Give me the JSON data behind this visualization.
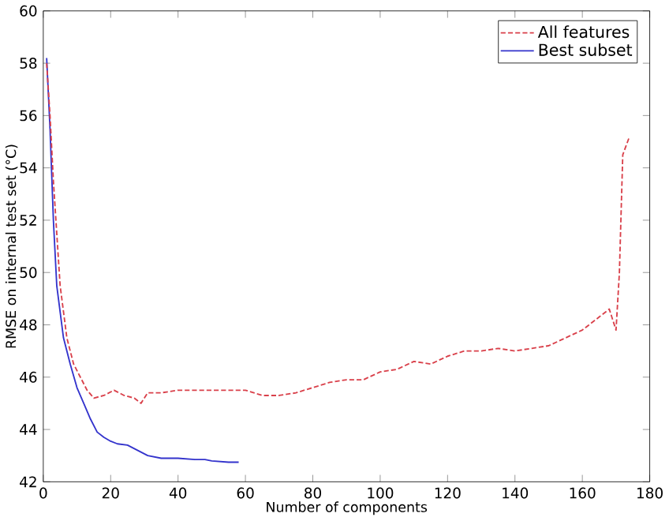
{
  "chart_data": {
    "type": "line",
    "xlabel": "Number of components",
    "ylabel": "RMSE on internal test set (°C)",
    "xlim": [
      0,
      180
    ],
    "ylim": [
      42,
      60
    ],
    "xticks": [
      0,
      20,
      40,
      60,
      80,
      100,
      120,
      140,
      160,
      180
    ],
    "yticks": [
      42,
      44,
      46,
      48,
      50,
      52,
      54,
      56,
      58,
      60
    ],
    "grid": false,
    "legend": "top right",
    "series": [
      {
        "name": "All features",
        "color": "#d9404a",
        "line_style": "dashed",
        "x": [
          1,
          2,
          3,
          5,
          7,
          9,
          11,
          13,
          15,
          18,
          21,
          24,
          27,
          29,
          31,
          35,
          40,
          45,
          50,
          55,
          60,
          65,
          70,
          75,
          80,
          85,
          90,
          95,
          100,
          105,
          110,
          115,
          120,
          125,
          130,
          135,
          140,
          145,
          150,
          155,
          160,
          165,
          168,
          170,
          171,
          172,
          174
        ],
        "values": [
          58,
          56,
          53.5,
          49.5,
          47.5,
          46.5,
          46,
          45.5,
          45.2,
          45.3,
          45.5,
          45.3,
          45.2,
          45,
          45.4,
          45.4,
          45.5,
          45.5,
          45.5,
          45.5,
          45.5,
          45.3,
          45.3,
          45.4,
          45.6,
          45.8,
          45.9,
          45.9,
          46.2,
          46.3,
          46.6,
          46.5,
          46.8,
          47,
          47,
          47.1,
          47,
          47.1,
          47.2,
          47.5,
          47.8,
          48.3,
          48.6,
          47.8,
          50,
          54.5,
          55.2
        ]
      },
      {
        "name": "Best subset",
        "color": "#3333cc",
        "line_style": "solid",
        "x": [
          1,
          2,
          3,
          4,
          6,
          8,
          10,
          12,
          14,
          16,
          18,
          20,
          22,
          25,
          28,
          31,
          35,
          40,
          45,
          48,
          50,
          55,
          58
        ],
        "values": [
          58.2,
          55.5,
          52,
          49.5,
          47.5,
          46.5,
          45.6,
          45,
          44.4,
          43.9,
          43.7,
          43.55,
          43.45,
          43.4,
          43.2,
          43,
          42.9,
          42.9,
          42.85,
          42.85,
          42.8,
          42.75,
          42.75
        ]
      }
    ]
  }
}
